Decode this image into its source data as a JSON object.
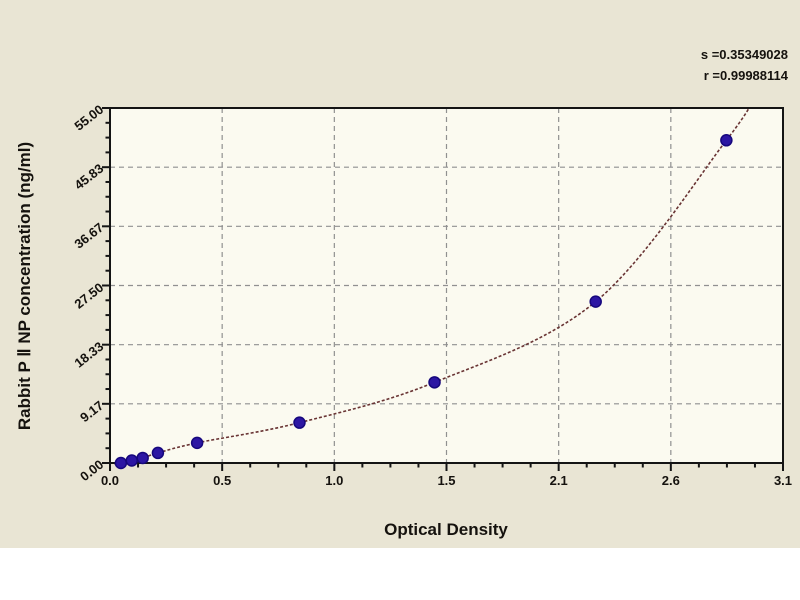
{
  "chart_data": {
    "type": "scatter",
    "title": "",
    "background_color": "#e9e5d4",
    "plot_bg_color": "#fbfaf0",
    "grid": "dashed",
    "grid_color": "#909090",
    "frame_color": "#141414",
    "curve_color": "#693434",
    "point_color": "#2c16a3",
    "point_edge_color": "#16077d",
    "x_axis": {
      "label": "Optical Density",
      "range": [
        0,
        3.09
      ],
      "major_ticks": [
        0,
        0.515,
        1.03,
        1.545,
        2.06,
        2.575,
        3.09
      ],
      "tick_labels": [
        "0.0",
        "0.5",
        "1.0",
        "1.5",
        "2.1",
        "2.6",
        "3.1"
      ],
      "minor_ticks_per_interval": 3
    },
    "y_axis": {
      "label": "Rabbit P Ⅱ NP concentration (ng/ml)",
      "range": [
        0,
        55
      ],
      "major_ticks": [
        55,
        45.83,
        36.67,
        27.5,
        18.33,
        9.17,
        0
      ],
      "tick_labels": [
        "55.00",
        "45.83",
        "36.67",
        "27.50",
        "18.33",
        "9.17",
        "0.00"
      ],
      "minor_ticks_per_interval": 3
    },
    "series": [
      {
        "name": "standard-points",
        "marker": "circle",
        "points": [
          [
            0.05,
            0
          ],
          [
            0.1,
            0.39
          ],
          [
            0.15,
            0.78
          ],
          [
            0.22,
            1.56
          ],
          [
            0.4,
            3.12
          ],
          [
            0.87,
            6.25
          ],
          [
            1.49,
            12.5
          ],
          [
            2.23,
            25
          ],
          [
            2.83,
            50
          ]
        ]
      },
      {
        "name": "fitted-curve",
        "style": "dashed-line-through-points"
      }
    ],
    "fit_stats": {
      "s_text": "s =0.35349028",
      "r_text": "r =0.99988114"
    },
    "legend": "none"
  }
}
